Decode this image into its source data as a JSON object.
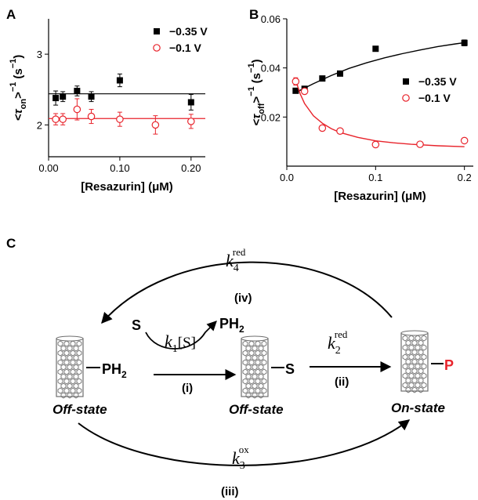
{
  "figure": {
    "panels": {
      "a": "A",
      "b": "B",
      "c": "C"
    }
  },
  "chart_data": [
    {
      "type": "scatter",
      "panel": "A",
      "xlabel": "[Resazurin] (μM)",
      "ylabel_main": "<τ",
      "ylabel_sub": "on",
      "ylabel_tail": ">",
      "ylabel_sup": "−1",
      "ylabel_unit": "(s",
      "ylabel_unit_sup": "−1",
      "ylabel_unit_close": ")",
      "xlim": [
        0,
        0.22
      ],
      "ylim": [
        1.55,
        3.5
      ],
      "xticks": [
        0.0,
        0.1,
        0.2
      ],
      "xtick_labels": [
        "0.00",
        "0.10",
        "0.20"
      ],
      "yticks": [
        2,
        3
      ],
      "ytick_labels": [
        "2",
        "3"
      ],
      "legend_position": "top-right",
      "series": [
        {
          "name": "−0.35 V",
          "color": "#000000",
          "marker": "filled-square",
          "x": [
            0.01,
            0.02,
            0.04,
            0.06,
            0.1,
            0.2
          ],
          "y": [
            2.38,
            2.4,
            2.48,
            2.4,
            2.63,
            2.32
          ],
          "err": [
            0.1,
            0.07,
            0.07,
            0.07,
            0.09,
            0.11
          ],
          "fit": 2.44
        },
        {
          "name": "−0.1 V",
          "color": "#e8232b",
          "marker": "open-circle",
          "x": [
            0.01,
            0.02,
            0.04,
            0.06,
            0.1,
            0.15,
            0.2
          ],
          "y": [
            2.08,
            2.08,
            2.22,
            2.12,
            2.08,
            2.0,
            2.05
          ],
          "err": [
            0.08,
            0.08,
            0.15,
            0.1,
            0.1,
            0.13,
            0.1
          ],
          "fit": 2.09
        }
      ]
    },
    {
      "type": "scatter",
      "panel": "B",
      "xlabel": "[Resazurin] (μM)",
      "ylabel_main": "<τ",
      "ylabel_sub": "off",
      "ylabel_tail": ">",
      "ylabel_sup": "−1",
      "ylabel_unit": "(s",
      "ylabel_unit_sup": "−1",
      "ylabel_unit_close": ")",
      "xlim": [
        0,
        0.21
      ],
      "ylim": [
        0.0,
        0.06
      ],
      "xticks": [
        0.0,
        0.1,
        0.2
      ],
      "xtick_labels": [
        "0.0",
        "0.1",
        "0.2"
      ],
      "yticks": [
        0.02,
        0.04,
        0.06
      ],
      "ytick_labels": [
        "0.02",
        "0.04",
        "0.06"
      ],
      "legend_position": "right",
      "series": [
        {
          "name": "−0.35 V",
          "color": "#000000",
          "marker": "filled-square",
          "x": [
            0.01,
            0.02,
            0.04,
            0.06,
            0.1,
            0.2
          ],
          "y": [
            0.0307,
            0.0315,
            0.0357,
            0.0377,
            0.0478,
            0.0502
          ],
          "err": [
            0.0008,
            0.0008,
            0.0008,
            0.0008,
            0.0008,
            0.0012
          ],
          "fit_x": [
            0.01,
            0.03,
            0.05,
            0.07,
            0.09,
            0.11,
            0.13,
            0.15,
            0.17,
            0.19,
            0.2
          ],
          "fit_y": [
            0.03,
            0.0336,
            0.0369,
            0.0398,
            0.0421,
            0.0441,
            0.0458,
            0.0473,
            0.0487,
            0.0498,
            0.0503
          ]
        },
        {
          "name": "−0.1 V",
          "color": "#e8232b",
          "marker": "open-circle",
          "x": [
            0.01,
            0.02,
            0.04,
            0.06,
            0.1,
            0.15,
            0.2
          ],
          "y": [
            0.0345,
            0.0305,
            0.0155,
            0.0143,
            0.0088,
            0.0089,
            0.0104
          ],
          "err": [
            0.0015,
            0.001,
            0.001,
            0.0008,
            0.0008,
            0.0006,
            0.0008
          ],
          "fit_x": [
            0.01,
            0.015,
            0.02,
            0.03,
            0.04,
            0.05,
            0.06,
            0.08,
            0.1,
            0.12,
            0.14,
            0.17,
            0.2
          ],
          "fit_y": [
            0.035,
            0.0295,
            0.0255,
            0.0205,
            0.0175,
            0.0153,
            0.0137,
            0.0117,
            0.0103,
            0.0095,
            0.0089,
            0.0083,
            0.0079
          ]
        }
      ]
    }
  ],
  "scheme": {
    "species": {
      "ph2": "PH",
      "ph2_sub": "2",
      "s": "S",
      "p": "P"
    },
    "states": {
      "off1": "Off-state",
      "off2": "Off-state",
      "on": "On-state"
    },
    "rates": {
      "k4": {
        "k": "k",
        "sub": "4",
        "sup": "red",
        "step": "(iv)"
      },
      "k1": {
        "k": "k",
        "sub": "1",
        "bracket": "[S]",
        "step": "(i)"
      },
      "k2": {
        "k": "k",
        "sub": "2",
        "sup": "red",
        "step": "(ii)"
      },
      "k3": {
        "k": "k",
        "sub": "3",
        "sup": "ox",
        "step": "(iii)"
      }
    },
    "colors": {
      "product": "#e8232b",
      "nanotube": "#6e6e6e"
    }
  }
}
